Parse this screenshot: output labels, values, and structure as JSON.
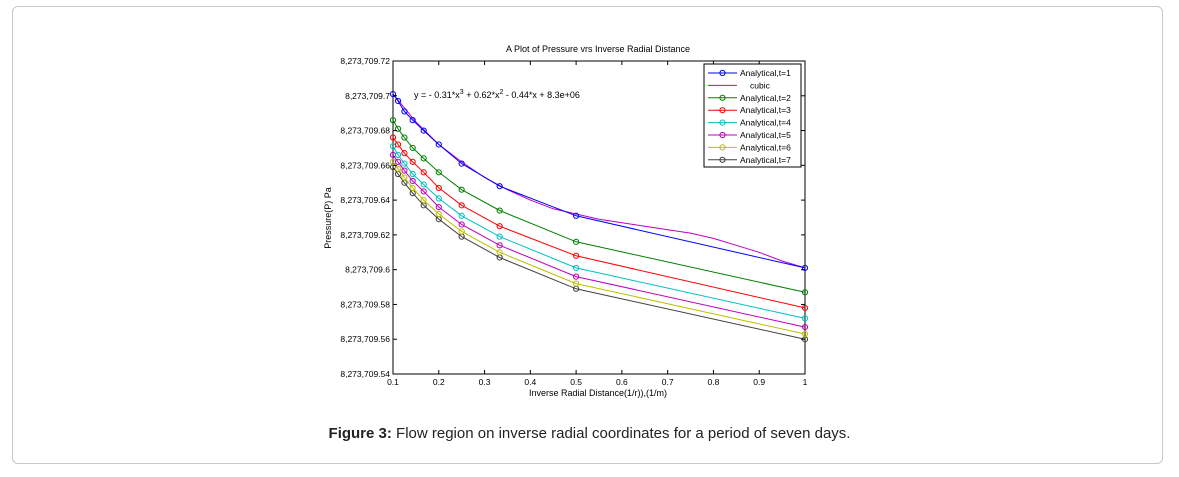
{
  "figure": {
    "caption_label": "Figure 3:",
    "caption_text": " Flow region on inverse radial coordinates for a period of seven days."
  },
  "chart_data": {
    "type": "line",
    "title": "A Plot of Pressure vrs Inverse Radial Distance",
    "xlabel": "Inverse Radial Distance(1/r)),(1/m)",
    "ylabel": "Pressure(P) Pa",
    "xlim": [
      0.1,
      1
    ],
    "ylim": [
      8273709.54,
      8273709.72
    ],
    "x_ticks": [
      "0.1",
      "0.2",
      "0.3",
      "0.4",
      "0.5",
      "0.6",
      "0.7",
      "0.8",
      "0.9",
      "1"
    ],
    "y_ticks": [
      "8,273,709.54",
      "8,273,709.56",
      "8,273,709.58",
      "8,273,709.6",
      "8,273,709.62",
      "8,273,709.64",
      "8,273,709.66",
      "8,273,709.68",
      "8,273,709.7",
      "8,273,709.72"
    ],
    "grid": false,
    "legend_position": "top-right",
    "annotation": {
      "prefix": "y = - 0.31*x",
      "sup1": "3",
      "mid": " + 0.62*x",
      "sup2": "2",
      "suffix": " - 0.44*x + 8.3e+06"
    },
    "x": [
      0.1,
      0.111,
      0.125,
      0.143,
      0.167,
      0.2,
      0.25,
      0.333,
      0.5,
      1.0
    ],
    "series": [
      {
        "name": "Analytical,t=1",
        "color": "#0000ff",
        "marker": true,
        "values": [
          8273709.701,
          8273709.697,
          8273709.691,
          8273709.686,
          8273709.68,
          8273709.672,
          8273709.661,
          8273709.648,
          8273709.631,
          8273709.601
        ]
      },
      {
        "name": "cubic",
        "color": "#bf00bf",
        "marker": false,
        "values": [
          8273709.701,
          8273709.697,
          8273709.691,
          8273709.686,
          8273709.68,
          8273709.672,
          8273709.662,
          8273709.648,
          8273709.632,
          8273709.601
        ]
      },
      {
        "name": "Analytical,t=2",
        "color": "#008000",
        "marker": true,
        "values": [
          8273709.686,
          8273709.681,
          8273709.676,
          8273709.67,
          8273709.664,
          8273709.656,
          8273709.646,
          8273709.634,
          8273709.616,
          8273709.587
        ]
      },
      {
        "name": "Analytical,t=3",
        "color": "#ff0000",
        "marker": true,
        "values": [
          8273709.676,
          8273709.672,
          8273709.667,
          8273709.662,
          8273709.656,
          8273709.647,
          8273709.637,
          8273709.625,
          8273709.608,
          8273709.578
        ]
      },
      {
        "name": "Analytical,t=4",
        "color": "#00bfbf",
        "marker": true,
        "values": [
          8273709.671,
          8273709.666,
          8273709.661,
          8273709.655,
          8273709.649,
          8273709.641,
          8273709.631,
          8273709.619,
          8273709.601,
          8273709.572
        ]
      },
      {
        "name": "Analytical,t=5",
        "color": "#bf00bf",
        "marker": true,
        "values": [
          8273709.666,
          8273709.662,
          8273709.657,
          8273709.651,
          8273709.645,
          8273709.636,
          8273709.626,
          8273709.614,
          8273709.596,
          8273709.567
        ]
      },
      {
        "name": "Analytical,t=6",
        "color": "#bfbf00",
        "marker": true,
        "values": [
          8273709.662,
          8273709.658,
          8273709.653,
          8273709.647,
          8273709.64,
          8273709.632,
          8273709.622,
          8273709.61,
          8273709.592,
          8273709.563
        ]
      },
      {
        "name": "Analytical,t=7",
        "color": "#404040",
        "marker": true,
        "values": [
          8273709.659,
          8273709.655,
          8273709.65,
          8273709.644,
          8273709.637,
          8273709.629,
          8273709.619,
          8273709.607,
          8273709.589,
          8273709.56
        ]
      }
    ],
    "cubic_curve": {
      "x": [
        0.1,
        0.15,
        0.2,
        0.25,
        0.3,
        0.35,
        0.4,
        0.45,
        0.5,
        0.55,
        0.6,
        0.65,
        0.7,
        0.75,
        0.8,
        0.85,
        0.9,
        0.95,
        1.0
      ],
      "values": [
        8273709.701,
        8273709.685,
        8273709.672,
        8273709.662,
        8273709.653,
        8273709.646,
        8273709.64,
        8273709.635,
        8273709.632,
        8273709.629,
        8273709.627,
        8273709.625,
        8273709.623,
        8273709.621,
        8273709.618,
        8273709.614,
        8273709.61,
        8273709.605,
        8273709.601
      ]
    }
  }
}
